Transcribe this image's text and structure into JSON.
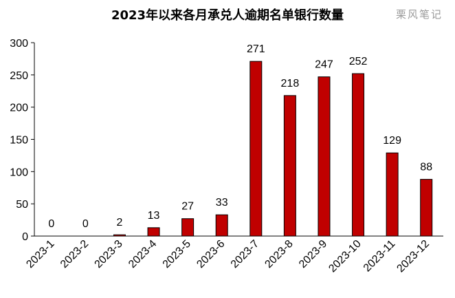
{
  "chart_data": {
    "type": "bar",
    "title": "2023年以来各月承兑人逾期名单银行数量",
    "watermark": "栗风笔记",
    "categories": [
      "2023-1",
      "2023-2",
      "2023-3",
      "2023-4",
      "2023-5",
      "2023-6",
      "2023-7",
      "2023-8",
      "2023-9",
      "2023-10",
      "2023-11",
      "2023-12"
    ],
    "values": [
      0,
      0,
      2,
      13,
      27,
      33,
      271,
      218,
      247,
      252,
      129,
      88
    ],
    "ylim": [
      0,
      300
    ],
    "yticks": [
      0,
      50,
      100,
      150,
      200,
      250,
      300
    ],
    "grid": false,
    "legend": "none",
    "colors": {
      "bar_fill": "#C00000",
      "bar_stroke": "#000000",
      "axis": "#000000"
    }
  }
}
